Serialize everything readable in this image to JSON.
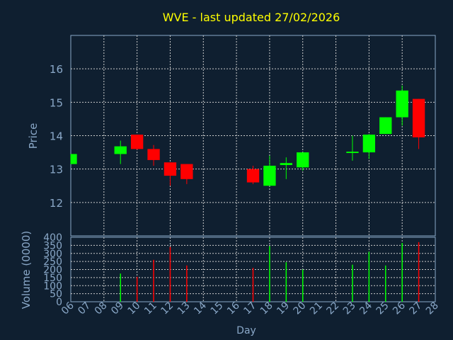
{
  "chart_data": [
    {
      "type": "candlestick",
      "title": "WVE - last updated 27/02/2026",
      "ylabel": "Price",
      "ylim": [
        11.0,
        17.0
      ],
      "yticks": [
        12,
        13,
        14,
        15,
        16
      ],
      "grid": true,
      "colors": {
        "up": "#00ff00",
        "down": "#ff0000",
        "title": "#ffff00",
        "axis_text": "#8aa8c8",
        "background": "#0f1f30",
        "grid": "#cccccc"
      },
      "candles": [
        {
          "day": "06",
          "open": 13.15,
          "high": 13.45,
          "low": 13.15,
          "close": 13.45
        },
        {
          "day": "09",
          "open": 13.45,
          "high": 13.85,
          "low": 13.15,
          "close": 13.68
        },
        {
          "day": "10",
          "open": 14.03,
          "high": 14.03,
          "low": 13.58,
          "close": 13.6
        },
        {
          "day": "11",
          "open": 13.6,
          "high": 13.72,
          "low": 13.1,
          "close": 13.27
        },
        {
          "day": "12",
          "open": 13.2,
          "high": 13.2,
          "low": 12.5,
          "close": 12.8
        },
        {
          "day": "13",
          "open": 13.15,
          "high": 13.15,
          "low": 12.55,
          "close": 12.7
        },
        {
          "day": "17",
          "open": 13.0,
          "high": 13.1,
          "low": 12.55,
          "close": 12.6
        },
        {
          "day": "18",
          "open": 12.5,
          "high": 13.4,
          "low": 12.5,
          "close": 13.1
        },
        {
          "day": "19",
          "open": 13.12,
          "high": 13.35,
          "low": 12.7,
          "close": 13.18
        },
        {
          "day": "20",
          "open": 13.05,
          "high": 13.5,
          "low": 12.95,
          "close": 13.5
        },
        {
          "day": "23",
          "open": 13.48,
          "high": 14.0,
          "low": 13.25,
          "close": 13.52
        },
        {
          "day": "24",
          "open": 13.5,
          "high": 14.05,
          "low": 13.3,
          "close": 14.03
        },
        {
          "day": "25",
          "open": 14.05,
          "high": 14.55,
          "low": 14.05,
          "close": 14.55
        },
        {
          "day": "26",
          "open": 14.55,
          "high": 15.5,
          "low": 14.3,
          "close": 15.35
        },
        {
          "day": "27",
          "open": 15.1,
          "high": 15.1,
          "low": 13.6,
          "close": 13.95
        }
      ]
    },
    {
      "type": "bar",
      "ylabel": "Volume (0000)",
      "xlabel": "Day",
      "ylim": [
        0,
        400
      ],
      "yticks": [
        0,
        50,
        100,
        150,
        200,
        250,
        300,
        350,
        400
      ],
      "categories": [
        "06",
        "07",
        "08",
        "09",
        "10",
        "11",
        "12",
        "13",
        "14",
        "15",
        "16",
        "17",
        "18",
        "19",
        "20",
        "21",
        "22",
        "23",
        "24",
        "25",
        "26",
        "27",
        "28"
      ],
      "bars": [
        {
          "day": "09",
          "value": 175,
          "color": "#00ff00"
        },
        {
          "day": "10",
          "value": 155,
          "color": "#ff0000"
        },
        {
          "day": "11",
          "value": 260,
          "color": "#ff0000"
        },
        {
          "day": "12",
          "value": 340,
          "color": "#ff0000"
        },
        {
          "day": "13",
          "value": 225,
          "color": "#ff0000"
        },
        {
          "day": "17",
          "value": 210,
          "color": "#ff0000"
        },
        {
          "day": "18",
          "value": 345,
          "color": "#00ff00"
        },
        {
          "day": "19",
          "value": 245,
          "color": "#00ff00"
        },
        {
          "day": "20",
          "value": 200,
          "color": "#00ff00"
        },
        {
          "day": "23",
          "value": 230,
          "color": "#00ff00"
        },
        {
          "day": "24",
          "value": 310,
          "color": "#00ff00"
        },
        {
          "day": "25",
          "value": 225,
          "color": "#00ff00"
        },
        {
          "day": "26",
          "value": 365,
          "color": "#00ff00"
        },
        {
          "day": "27",
          "value": 370,
          "color": "#ff0000"
        }
      ]
    }
  ]
}
